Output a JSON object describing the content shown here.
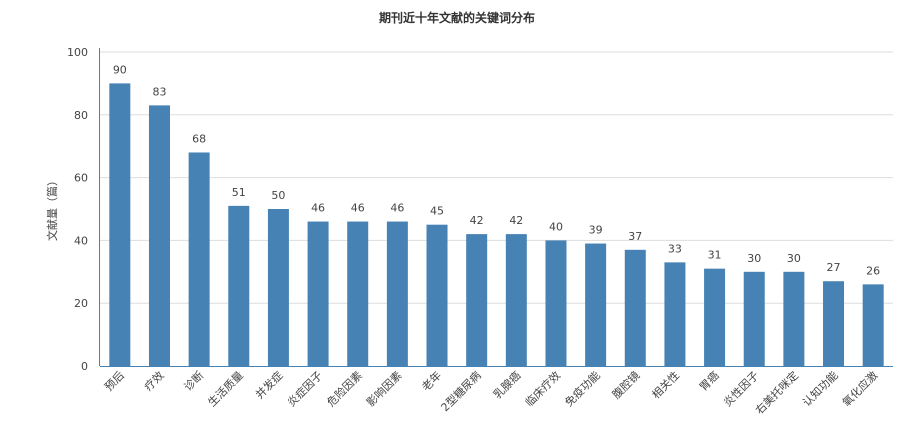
{
  "chart_data": {
    "type": "bar",
    "title": "期刊近十年文献的关键词分布",
    "xlabel": "",
    "ylabel": "文献量（篇）",
    "ylim": [
      0,
      100
    ],
    "yticks": [
      0,
      20,
      40,
      60,
      80,
      100
    ],
    "grid": true,
    "bar_color": "#4682b4",
    "categories": [
      "预后",
      "疗效",
      "诊断",
      "生活质量",
      "并发症",
      "炎症因子",
      "危险因素",
      "影响因素",
      "老年",
      "2型糖尿病",
      "乳腺癌",
      "临床疗效",
      "免疫功能",
      "腹腔镜",
      "相关性",
      "胃癌",
      "炎性因子",
      "右美托咪定",
      "认知功能",
      "氧化应激"
    ],
    "values": [
      90,
      83,
      68,
      51,
      50,
      46,
      46,
      46,
      45,
      42,
      42,
      40,
      39,
      37,
      33,
      31,
      30,
      30,
      27,
      26
    ]
  }
}
